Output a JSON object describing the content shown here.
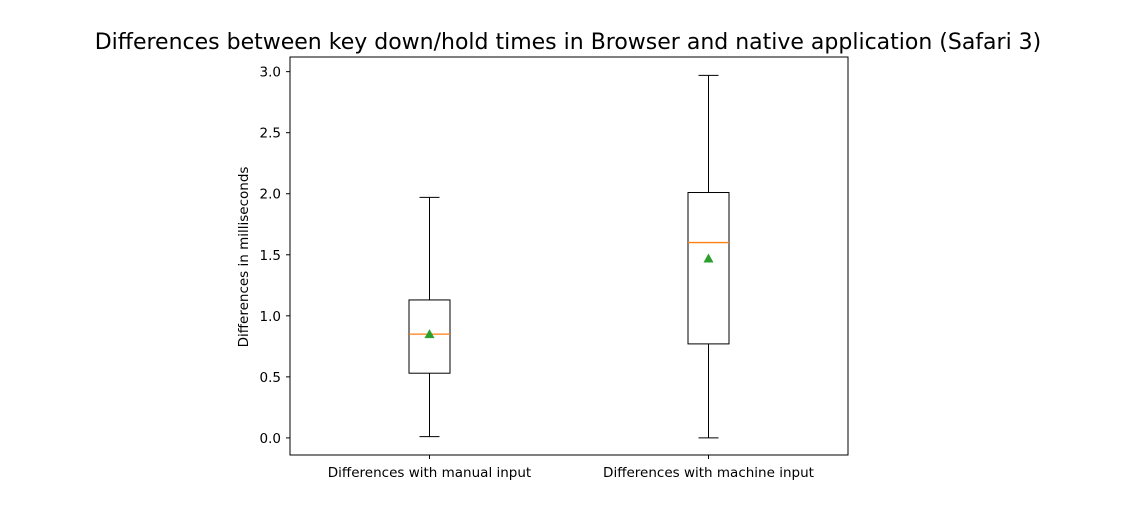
{
  "chart_data": {
    "type": "box",
    "title": "Differences between key down/hold times in Browser and native application (Safari 3)",
    "xlabel": "",
    "ylabel": "Differences in milliseconds",
    "ylim": [
      -0.14,
      3.12
    ],
    "yticks": [
      0.0,
      0.5,
      1.0,
      1.5,
      2.0,
      2.5,
      3.0
    ],
    "ytick_labels": [
      "0.0",
      "0.5",
      "1.0",
      "1.5",
      "2.0",
      "2.5",
      "3.0"
    ],
    "categories": [
      "Differences with manual input",
      "Differences with machine input"
    ],
    "boxes": [
      {
        "name": "Differences with manual input",
        "whisker_low": 0.01,
        "q1": 0.53,
        "median": 0.85,
        "q3": 1.13,
        "whisker_high": 1.97,
        "mean": 0.85
      },
      {
        "name": "Differences with machine input",
        "whisker_low": 0.0,
        "q1": 0.77,
        "median": 1.6,
        "q3": 2.01,
        "whisker_high": 2.97,
        "mean": 1.47
      }
    ],
    "grid": false,
    "colors": {
      "box": "#000000",
      "median": "#ff7f0e",
      "mean": "#2ca02c"
    }
  }
}
